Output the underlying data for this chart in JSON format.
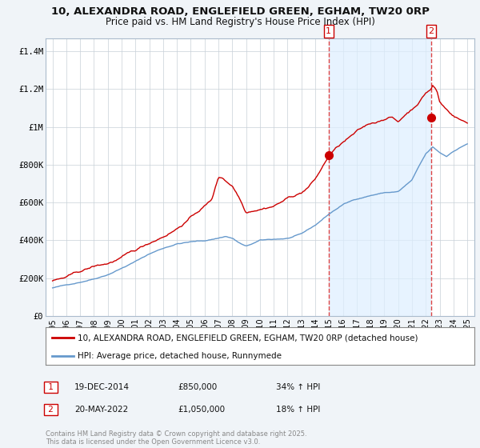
{
  "title": "10, ALEXANDRA ROAD, ENGLEFIELD GREEN, EGHAM, TW20 0RP",
  "subtitle": "Price paid vs. HM Land Registry's House Price Index (HPI)",
  "ylabel_ticks": [
    "£0",
    "£200K",
    "£400K",
    "£600K",
    "£800K",
    "£1M",
    "£1.2M",
    "£1.4M"
  ],
  "ytick_values": [
    0,
    200000,
    400000,
    600000,
    800000,
    1000000,
    1200000,
    1400000
  ],
  "ylim": [
    0,
    1470000
  ],
  "xlim_start": 1994.5,
  "xlim_end": 2025.5,
  "xtick_years": [
    1995,
    1996,
    1997,
    1998,
    1999,
    2000,
    2001,
    2002,
    2003,
    2004,
    2005,
    2006,
    2007,
    2008,
    2009,
    2010,
    2011,
    2012,
    2013,
    2014,
    2015,
    2016,
    2017,
    2018,
    2019,
    2020,
    2021,
    2022,
    2023,
    2024,
    2025
  ],
  "red_color": "#cc0000",
  "blue_color": "#6699cc",
  "shade_color": "#ddeeff",
  "dashed_color": "#dd4444",
  "marker1_year": 2014.97,
  "marker1_value": 850000,
  "marker2_year": 2022.38,
  "marker2_value": 1050000,
  "legend1": "10, ALEXANDRA ROAD, ENGLEFIELD GREEN, EGHAM, TW20 0RP (detached house)",
  "legend2": "HPI: Average price, detached house, Runnymede",
  "annotation1_label": "1",
  "annotation1_date": "19-DEC-2014",
  "annotation1_price": "£850,000",
  "annotation1_hpi": "34% ↑ HPI",
  "annotation2_label": "2",
  "annotation2_date": "20-MAY-2022",
  "annotation2_price": "£1,050,000",
  "annotation2_hpi": "18% ↑ HPI",
  "footer": "Contains HM Land Registry data © Crown copyright and database right 2025.\nThis data is licensed under the Open Government Licence v3.0.",
  "background_color": "#f0f4f8",
  "plot_background": "#ffffff"
}
